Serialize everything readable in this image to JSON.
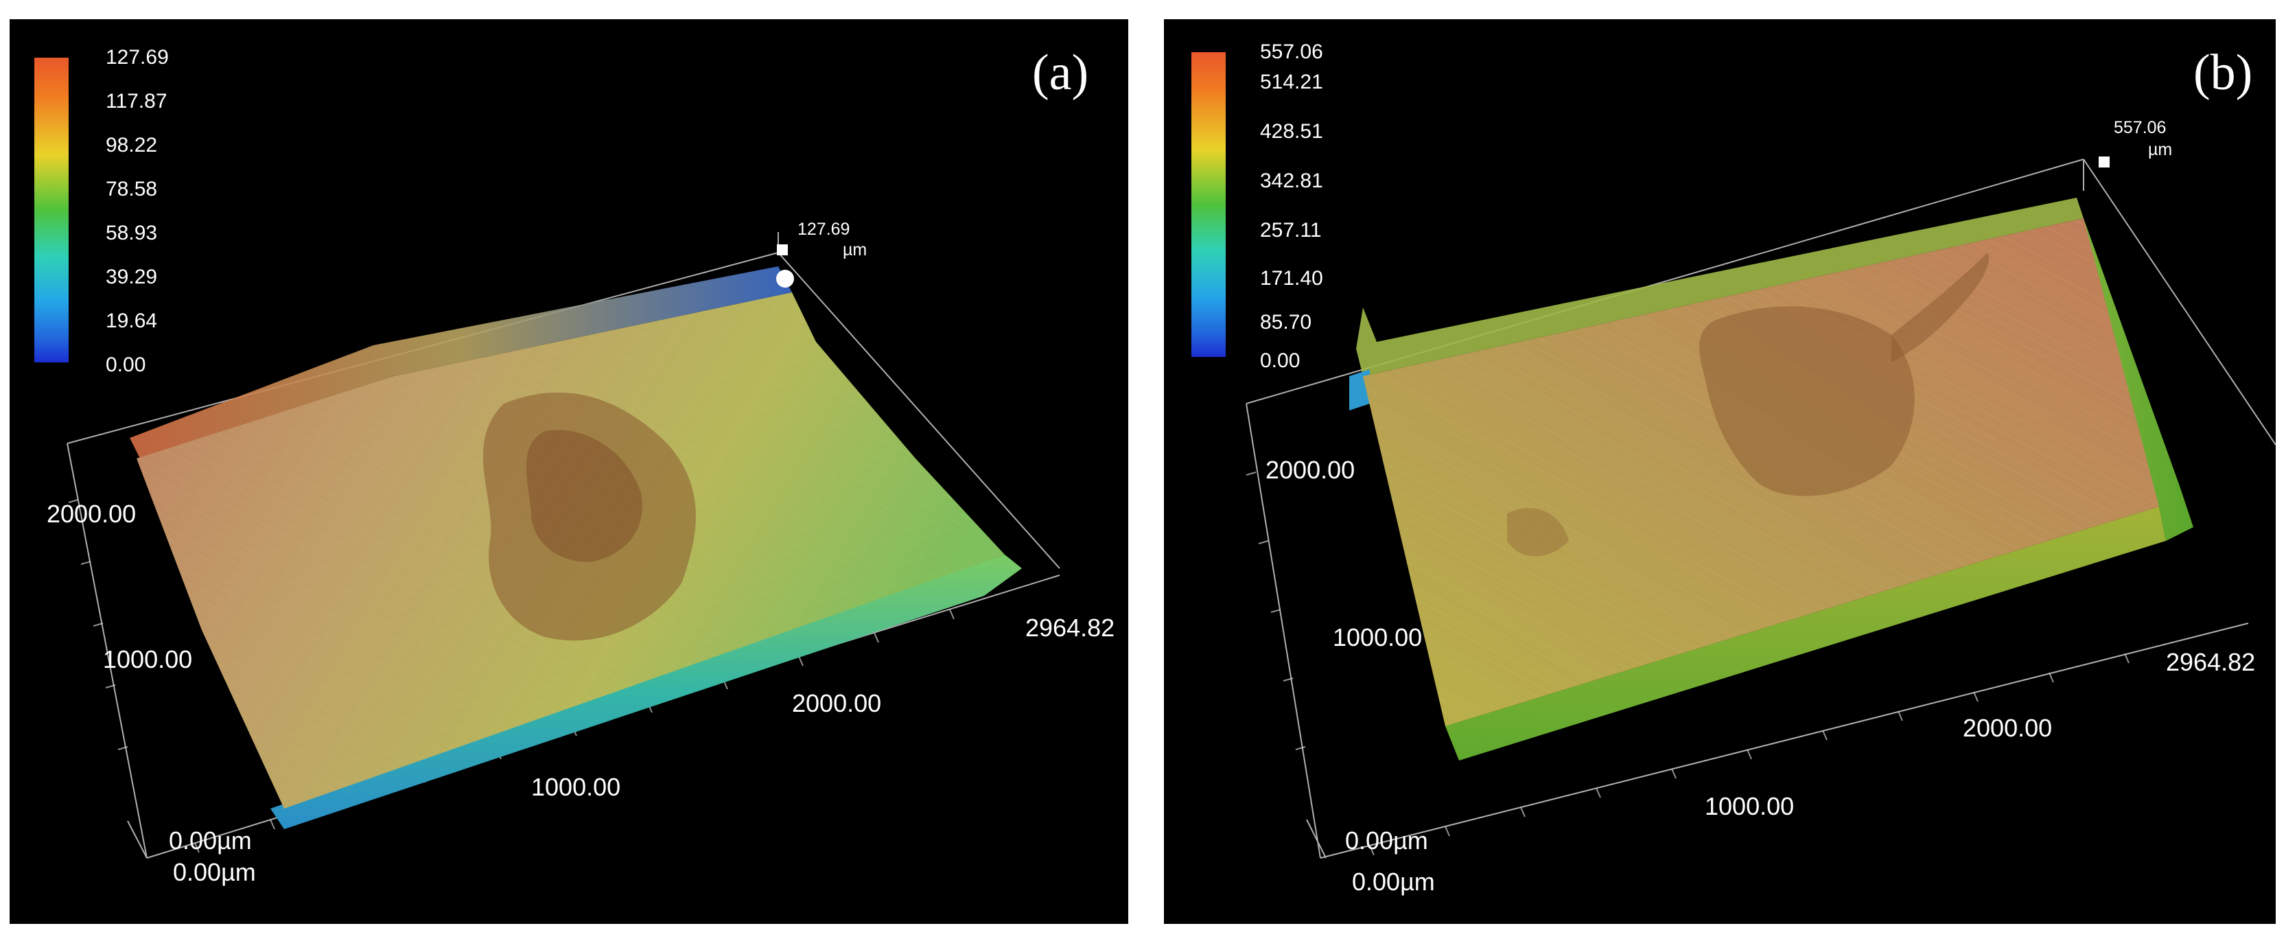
{
  "panels": {
    "a": {
      "letter": "(a)",
      "colorbar": [
        "127.69",
        "117.87",
        "98.22",
        "78.58",
        "58.93",
        "39.29",
        "19.64",
        "0.00"
      ],
      "peak_value": "127.69",
      "peak_unit": "µm",
      "x_axis": [
        "0.00µm",
        "1000.00",
        "2000.00",
        "2964.82"
      ],
      "y_axis": [
        "0.00µm",
        "1000.00",
        "2000.00"
      ]
    },
    "b": {
      "letter": "(b)",
      "colorbar": [
        "557.06",
        "514.21",
        "428.51",
        "342.81",
        "257.11",
        "171.40",
        "85.70",
        "0.00"
      ],
      "peak_value": "557.06",
      "peak_unit": "µm",
      "x_axis": [
        "0.00µm",
        "1000.00",
        "2000.00",
        "2964.82"
      ],
      "y_axis": [
        "0.00µm",
        "1000.00",
        "2000.00"
      ]
    }
  },
  "colormap": [
    "#e8582a",
    "#f07a22",
    "#e9d229",
    "#4fc23c",
    "#2fd0b5",
    "#25a6e8",
    "#2268dc",
    "#1c2ed2"
  ]
}
